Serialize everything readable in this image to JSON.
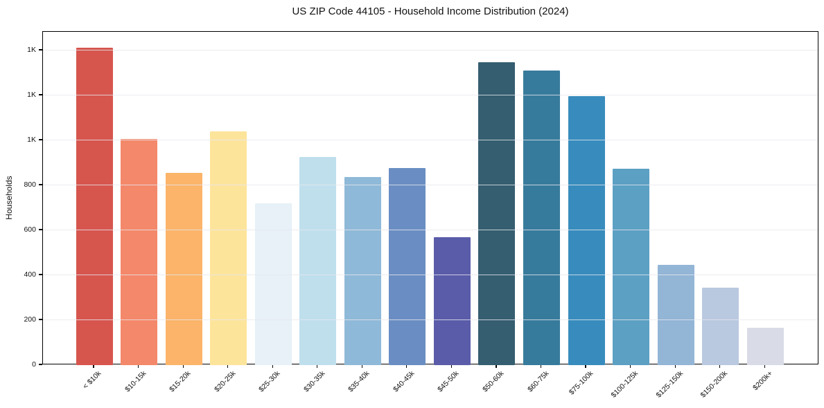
{
  "title": "US ZIP Code 44105 - Household Income Distribution (2024)",
  "colors": {
    "background": "#ffffff",
    "spine": "#000000",
    "gridline": "#e7e7ee",
    "text": "#111111"
  },
  "chart_data": {
    "type": "bar",
    "title": "US ZIP Code 44105 - Household Income Distribution (2024)",
    "xlabel": "",
    "ylabel": "Households",
    "categories": [
      "< $10k",
      "$10-15k",
      "$15-20k",
      "$20-25k",
      "$25-30k",
      "$30-35k",
      "$35-40k",
      "$40-45k",
      "$45-50k",
      "$50-60k",
      "$60-75k",
      "$75-100k",
      "$100-125k",
      "$125-150k",
      "$150-200k",
      "$200k+"
    ],
    "values": [
      1413,
      1005,
      855,
      1040,
      720,
      925,
      838,
      878,
      570,
      1347,
      1312,
      1196,
      873,
      445,
      345,
      166
    ],
    "bar_colors": [
      "#d6564e",
      "#f4886a",
      "#fbb469",
      "#fde49b",
      "#e7f1f7",
      "#bfdfed",
      "#8fb9d8",
      "#6a8ec3",
      "#5a5ca9",
      "#355e70",
      "#377b9c",
      "#388cbd",
      "#5ca0c4",
      "#93b5d6",
      "#b9c9df",
      "#d9dbe7"
    ],
    "ylim": [
      0,
      1483
    ],
    "yticks": [
      0,
      200,
      400,
      600,
      800,
      1000,
      1200,
      1400
    ],
    "ytick_labels": [
      "0",
      "200",
      "400",
      "600",
      "800",
      "1K",
      "1K",
      "1K"
    ],
    "grid": true,
    "legend_position": "none"
  }
}
